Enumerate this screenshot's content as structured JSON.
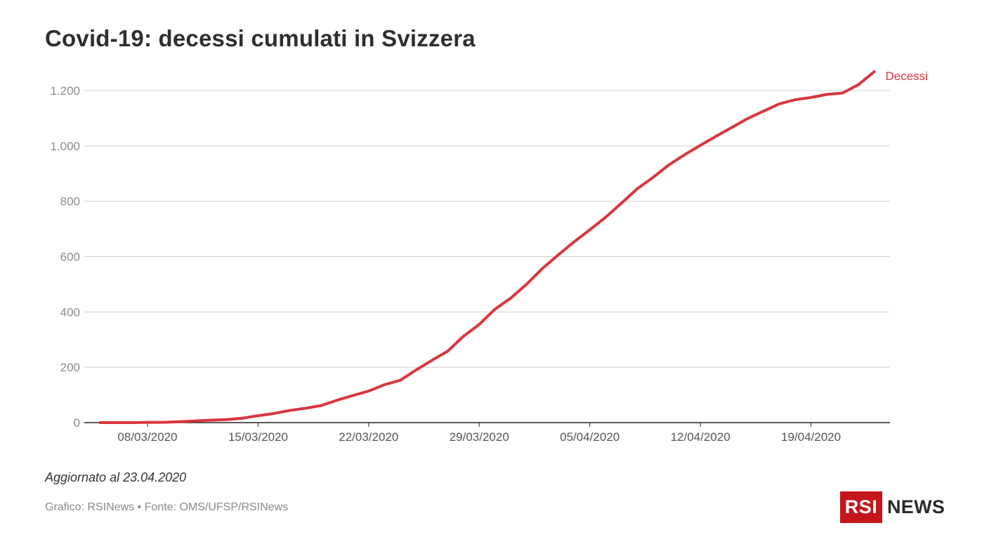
{
  "title": "Covid-19: decessi cumulati in Svizzera",
  "footer": {
    "updated": "Aggiornato al 23.04.2020",
    "source": "Grafico: RSINews • Fonte: OMS/UFSP/RSINews"
  },
  "logo": {
    "box_text": "RSI",
    "word": "NEWS",
    "brand_color": "#c4161c"
  },
  "chart_data": {
    "type": "line",
    "title": "Covid-19: decessi cumulati in Svizzera",
    "xlabel": "",
    "ylabel": "",
    "ylim": [
      0,
      1200
    ],
    "yticks": [
      0,
      200,
      400,
      600,
      800,
      1000,
      1200
    ],
    "ytick_labels": [
      "0",
      "200",
      "400",
      "600",
      "800",
      "1.000",
      "1.200"
    ],
    "xticks": [
      "2020-03-08",
      "2020-03-15",
      "2020-03-22",
      "2020-03-29",
      "2020-04-05",
      "2020-04-12",
      "2020-04-19"
    ],
    "xtick_labels": [
      "08/03/2020",
      "15/03/2020",
      "22/03/2020",
      "29/03/2020",
      "05/04/2020",
      "12/04/2020",
      "19/04/2020"
    ],
    "grid": true,
    "x": [
      "2020-03-05",
      "2020-03-06",
      "2020-03-07",
      "2020-03-08",
      "2020-03-09",
      "2020-03-10",
      "2020-03-11",
      "2020-03-12",
      "2020-03-13",
      "2020-03-14",
      "2020-03-15",
      "2020-03-16",
      "2020-03-17",
      "2020-03-18",
      "2020-03-19",
      "2020-03-20",
      "2020-03-21",
      "2020-03-22",
      "2020-03-23",
      "2020-03-24",
      "2020-03-25",
      "2020-03-26",
      "2020-03-27",
      "2020-03-28",
      "2020-03-29",
      "2020-03-30",
      "2020-03-31",
      "2020-04-01",
      "2020-04-02",
      "2020-04-03",
      "2020-04-04",
      "2020-04-05",
      "2020-04-06",
      "2020-04-07",
      "2020-04-08",
      "2020-04-09",
      "2020-04-10",
      "2020-04-11",
      "2020-04-12",
      "2020-04-13",
      "2020-04-14",
      "2020-04-15",
      "2020-04-16",
      "2020-04-17",
      "2020-04-18",
      "2020-04-19",
      "2020-04-20",
      "2020-04-21",
      "2020-04-22",
      "2020-04-23"
    ],
    "series": [
      {
        "name": "Decessi",
        "color": "#d9363e",
        "values": [
          0,
          0,
          0,
          1,
          1,
          3,
          6,
          9,
          11,
          16,
          25,
          33,
          44,
          52,
          62,
          81,
          98,
          114,
          137,
          153,
          190,
          225,
          258,
          312,
          355,
          410,
          450,
          500,
          557,
          606,
          653,
          697,
          742,
          793,
          845,
          886,
          931,
          968,
          1002,
          1035,
          1067,
          1099,
          1126,
          1152,
          1167,
          1175,
          1186,
          1191,
          1221,
          1268
        ]
      }
    ]
  }
}
